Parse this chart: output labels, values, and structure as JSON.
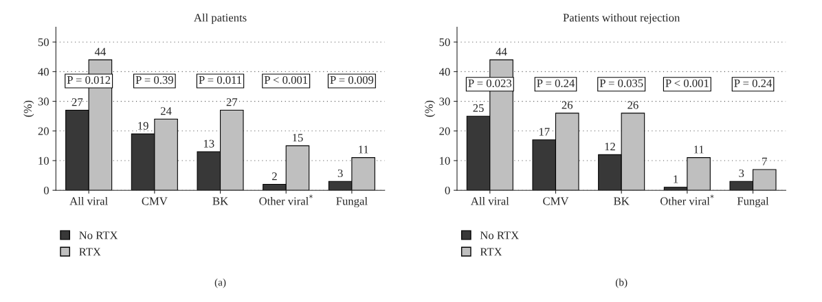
{
  "chart_data": [
    {
      "type": "bar",
      "title": "All patients",
      "ylabel": "(%)",
      "categories": [
        "All viral",
        "CMV",
        "BK",
        "Other viral$^{*}$",
        "Fungal"
      ],
      "series": [
        {
          "name": "No RTX",
          "color": "#383838",
          "values": [
            27,
            19,
            13,
            2,
            3
          ]
        },
        {
          "name": "RTX",
          "color": "#bfbfbf",
          "values": [
            44,
            24,
            27,
            15,
            11
          ]
        }
      ],
      "ylim": [
        0,
        55
      ],
      "yticks": [
        0,
        10,
        20,
        30,
        40,
        50
      ],
      "grid": "y",
      "legend": "bottom left",
      "data_labels": true,
      "annotations": [
        "P = 0.012",
        "P = 0.39",
        "P = 0.011",
        "P < 0.001",
        "P = 0.009",
        "(a)"
      ]
    },
    {
      "type": "bar",
      "title": "Patients without rejection",
      "ylabel": "(%)",
      "categories": [
        "All viral",
        "CMV",
        "BK",
        "Other viral$^{*}$",
        "Fungal"
      ],
      "series": [
        {
          "name": "No RTX",
          "color": "#383838",
          "values": [
            25,
            17,
            12,
            1,
            3
          ]
        },
        {
          "name": "RTX",
          "color": "#bfbfbf",
          "values": [
            44,
            26,
            26,
            11,
            7
          ]
        }
      ],
      "ylim": [
        0,
        55
      ],
      "yticks": [
        0,
        10,
        20,
        30,
        40,
        50
      ],
      "grid": "y",
      "legend": "bottom left",
      "data_labels": true,
      "annotations": [
        "P = 0.023",
        "P = 0.24",
        "P = 0.035",
        "P < 0.001",
        "P = 0.24",
        "(b)"
      ]
    }
  ]
}
